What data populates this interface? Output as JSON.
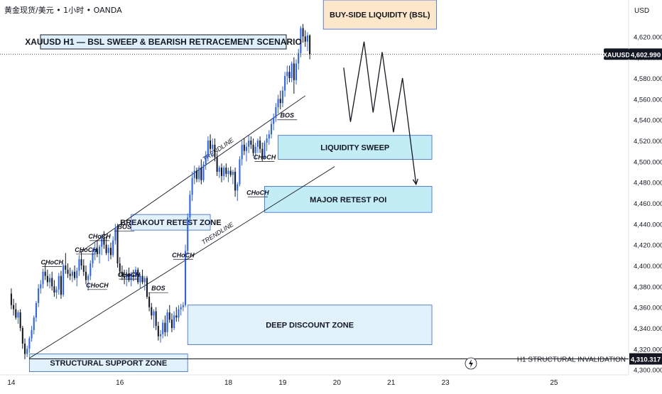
{
  "header": {
    "symbol_text": "黄金现货/美元 • 1小时 • OANDA"
  },
  "chart_data": {
    "type": "candlestick",
    "title": "XAUUSD H1 — BSL SWEEP & BEARISH RETRACEMENT SCENARIO",
    "currency": "USD",
    "symbol": "XAUUSD",
    "last_price": "4,602.990",
    "ylim": [
      4295,
      4655
    ],
    "y_ticks": [
      "4,300.000",
      "4,320.000",
      "4,340.000",
      "4,360.000",
      "4,380.000",
      "4,400.000",
      "4,420.000",
      "4,440.000",
      "4,460.000",
      "4,480.000",
      "4,500.000",
      "4,520.000",
      "4,540.000",
      "4,560.000",
      "4,580.000",
      "4,600.000",
      "4,620.000"
    ],
    "y_tick_values": [
      4300,
      4320,
      4340,
      4360,
      4380,
      4400,
      4420,
      4440,
      4460,
      4480,
      4500,
      4520,
      4540,
      4560,
      4580,
      4600,
      4620
    ],
    "x_ticks": [
      {
        "label": "14",
        "t": 0
      },
      {
        "label": "16",
        "t": 48
      },
      {
        "label": "18",
        "t": 96
      },
      {
        "label": "19",
        "t": 120
      },
      {
        "label": "20",
        "t": 144
      },
      {
        "label": "21",
        "t": 168
      },
      {
        "label": "23",
        "t": 192
      },
      {
        "label": "25",
        "t": 240
      }
    ],
    "xlim": [
      -5,
      273
    ],
    "invalidation": {
      "label": "H1 STRUCTURAL INVALIDATION",
      "price": 4310.317,
      "price_text": "4,310.317"
    },
    "zones": [
      {
        "name": "buy-side-liquidity-zone",
        "label": "BUY-SIDE LIQUIDITY (BSL)",
        "t0": 138,
        "t1": 188,
        "p0": 4627,
        "p1": 4655,
        "fill": "#fde3bf",
        "stroke": "#2962ff"
      },
      {
        "name": "liquidity-sweep-zone",
        "label": "LIQUIDITY SWEEP",
        "t0": 118,
        "t1": 186,
        "p0": 4502,
        "p1": 4525,
        "fill": "#b9eaf2",
        "stroke": "#2962ff"
      },
      {
        "name": "major-retest-poi-zone",
        "label": "MAJOR RETEST POI",
        "t0": 112,
        "t1": 186,
        "p0": 4451,
        "p1": 4476,
        "fill": "#b9eaf2",
        "stroke": "#2962ff"
      },
      {
        "name": "breakout-retest-zone",
        "label": "BREAKOUT RETEST ZONE",
        "t0": 53,
        "t1": 88,
        "p0": 4434,
        "p1": 4449,
        "fill": "#ddf0fb",
        "stroke": "#2962ff"
      },
      {
        "name": "deep-discount-zone",
        "label": "DEEP DISCOUNT ZONE",
        "t0": 78,
        "t1": 186,
        "p0": 4324,
        "p1": 4362,
        "fill": "#ddf0fb",
        "stroke": "#2962ff"
      },
      {
        "name": "structural-support-zone",
        "label": "STRUCTURAL SUPPORT ZONE",
        "t0": 8,
        "t1": 78,
        "p0": 4298,
        "p1": 4315,
        "fill": "#ddf0fb",
        "stroke": "#2962ff"
      }
    ],
    "trendlines": [
      {
        "label": "TRENDLINE",
        "t0": 30,
        "p0": 4412,
        "t1": 130,
        "p1": 4563
      },
      {
        "label": "TRENDLINE",
        "t0": 8,
        "p0": 4311,
        "t1": 143,
        "p1": 4495
      }
    ],
    "structure_labels": [
      {
        "text": "CHoCH",
        "t": 18,
        "p": 4401
      },
      {
        "text": "CHoCH",
        "t": 33,
        "p": 4413
      },
      {
        "text": "CHoCH",
        "t": 39,
        "p": 4426
      },
      {
        "text": "BOS",
        "t": 50,
        "p": 4435
      },
      {
        "text": "CHoCH",
        "t": 38,
        "p": 4379
      },
      {
        "text": "CHoCH",
        "t": 52,
        "p": 4389
      },
      {
        "text": "CHoCH",
        "t": 76,
        "p": 4408
      },
      {
        "text": "BOS",
        "t": 65,
        "p": 4376
      },
      {
        "text": "CHoCH",
        "t": 112,
        "p": 4502
      },
      {
        "text": "CHoCH",
        "t": 109,
        "p": 4468
      },
      {
        "text": "BOS",
        "t": 122,
        "p": 4542
      }
    ],
    "projection": [
      [
        147,
        4590
      ],
      [
        150,
        4538
      ],
      [
        156,
        4615
      ],
      [
        160,
        4547
      ],
      [
        164,
        4605
      ],
      [
        169,
        4528
      ],
      [
        173,
        4580
      ],
      [
        179,
        4478
      ]
    ],
    "candles": [
      [
        4373,
        4378,
        4358,
        4362
      ],
      [
        4362,
        4368,
        4352,
        4358
      ],
      [
        4358,
        4364,
        4348,
        4350
      ],
      [
        4350,
        4357,
        4344,
        4355
      ],
      [
        4355,
        4358,
        4337,
        4340
      ],
      [
        4340,
        4342,
        4320,
        4325
      ],
      [
        4325,
        4330,
        4310,
        4315
      ],
      [
        4315,
        4323,
        4312,
        4320
      ],
      [
        4320,
        4332,
        4316,
        4330
      ],
      [
        4330,
        4342,
        4327,
        4338
      ],
      [
        4338,
        4352,
        4334,
        4350
      ],
      [
        4350,
        4366,
        4346,
        4364
      ],
      [
        4364,
        4382,
        4360,
        4378
      ],
      [
        4378,
        4386,
        4373,
        4382
      ],
      [
        4382,
        4397,
        4378,
        4394
      ],
      [
        4394,
        4402,
        4386,
        4390
      ],
      [
        4390,
        4396,
        4380,
        4384
      ],
      [
        4384,
        4392,
        4378,
        4388
      ],
      [
        4388,
        4394,
        4376,
        4380
      ],
      [
        4380,
        4386,
        4370,
        4374
      ],
      [
        4374,
        4380,
        4368,
        4377
      ],
      [
        4377,
        4393,
        4372,
        4390
      ],
      [
        4390,
        4395,
        4368,
        4372
      ],
      [
        4372,
        4402,
        4370,
        4400
      ],
      [
        4400,
        4412,
        4392,
        4396
      ],
      [
        4396,
        4402,
        4388,
        4392
      ],
      [
        4392,
        4398,
        4386,
        4390
      ],
      [
        4390,
        4396,
        4384,
        4394
      ],
      [
        4394,
        4400,
        4386,
        4388
      ],
      [
        4388,
        4398,
        4380,
        4395
      ],
      [
        4395,
        4410,
        4390,
        4406
      ],
      [
        4406,
        4414,
        4396,
        4400
      ],
      [
        4400,
        4406,
        4390,
        4394
      ],
      [
        4394,
        4400,
        4382,
        4386
      ],
      [
        4386,
        4392,
        4376,
        4390
      ],
      [
        4390,
        4405,
        4386,
        4402
      ],
      [
        4402,
        4416,
        4398,
        4412
      ],
      [
        4412,
        4422,
        4405,
        4416
      ],
      [
        4416,
        4424,
        4408,
        4411
      ],
      [
        4411,
        4420,
        4402,
        4418
      ],
      [
        4418,
        4430,
        4410,
        4426
      ],
      [
        4426,
        4433,
        4416,
        4420
      ],
      [
        4420,
        4428,
        4410,
        4412
      ],
      [
        4412,
        4420,
        4404,
        4417
      ],
      [
        4417,
        4422,
        4406,
        4410
      ],
      [
        4410,
        4428,
        4408,
        4424
      ],
      [
        4424,
        4440,
        4420,
        4436
      ],
      [
        4436,
        4440,
        4398,
        4402
      ],
      [
        4402,
        4408,
        4390,
        4394
      ],
      [
        4394,
        4400,
        4386,
        4390
      ],
      [
        4390,
        4396,
        4382,
        4388
      ],
      [
        4388,
        4396,
        4380,
        4392
      ],
      [
        4392,
        4398,
        4384,
        4386
      ],
      [
        4386,
        4394,
        4380,
        4391
      ],
      [
        4391,
        4396,
        4385,
        4389
      ],
      [
        4389,
        4399,
        4386,
        4396
      ],
      [
        4396,
        4398,
        4382,
        4384
      ],
      [
        4384,
        4392,
        4378,
        4390
      ],
      [
        4390,
        4396,
        4382,
        4384
      ],
      [
        4384,
        4390,
        4376,
        4388
      ],
      [
        4388,
        4390,
        4368,
        4370
      ],
      [
        4370,
        4374,
        4356,
        4360
      ],
      [
        4360,
        4364,
        4348,
        4352
      ],
      [
        4352,
        4358,
        4340,
        4356
      ],
      [
        4356,
        4360,
        4338,
        4342
      ],
      [
        4342,
        4346,
        4328,
        4332
      ],
      [
        4332,
        4338,
        4326,
        4334
      ],
      [
        4334,
        4348,
        4330,
        4345
      ],
      [
        4345,
        4352,
        4332,
        4336
      ],
      [
        4336,
        4358,
        4332,
        4355
      ],
      [
        4355,
        4362,
        4345,
        4348
      ],
      [
        4348,
        4354,
        4336,
        4340
      ],
      [
        4340,
        4356,
        4338,
        4352
      ],
      [
        4352,
        4360,
        4346,
        4350
      ],
      [
        4350,
        4362,
        4346,
        4358
      ],
      [
        4358,
        4363,
        4352,
        4360
      ],
      [
        4360,
        4365,
        4356,
        4362
      ],
      [
        4362,
        4420,
        4360,
        4414
      ],
      [
        4414,
        4450,
        4410,
        4446
      ],
      [
        4446,
        4472,
        4440,
        4468
      ],
      [
        4468,
        4490,
        4462,
        4484
      ],
      [
        4484,
        4496,
        4478,
        4491
      ],
      [
        4491,
        4494,
        4480,
        4483
      ],
      [
        4483,
        4496,
        4480,
        4494
      ],
      [
        4494,
        4502,
        4478,
        4482
      ],
      [
        4482,
        4500,
        4480,
        4497
      ],
      [
        4497,
        4510,
        4492,
        4505
      ],
      [
        4505,
        4524,
        4500,
        4520
      ],
      [
        4520,
        4526,
        4508,
        4512
      ],
      [
        4512,
        4522,
        4504,
        4516
      ],
      [
        4516,
        4522,
        4500,
        4504
      ],
      [
        4504,
        4508,
        4486,
        4490
      ],
      [
        4490,
        4496,
        4484,
        4494
      ],
      [
        4494,
        4498,
        4480,
        4486
      ],
      [
        4486,
        4496,
        4482,
        4494
      ],
      [
        4494,
        4498,
        4485,
        4488
      ],
      [
        4488,
        4494,
        4480,
        4491
      ],
      [
        4491,
        4495,
        4485,
        4487
      ],
      [
        4487,
        4492,
        4478,
        4490
      ],
      [
        4490,
        4494,
        4466,
        4472
      ],
      [
        4472,
        4480,
        4462,
        4478
      ],
      [
        4478,
        4505,
        4476,
        4502
      ],
      [
        4502,
        4520,
        4496,
        4516
      ],
      [
        4516,
        4522,
        4506,
        4510
      ],
      [
        4510,
        4518,
        4500,
        4514
      ],
      [
        4514,
        4525,
        4508,
        4520
      ],
      [
        4520,
        4524,
        4512,
        4516
      ],
      [
        4516,
        4522,
        4505,
        4508
      ],
      [
        4508,
        4518,
        4502,
        4514
      ],
      [
        4514,
        4522,
        4508,
        4520
      ],
      [
        4520,
        4524,
        4508,
        4512
      ],
      [
        4512,
        4518,
        4500,
        4504
      ],
      [
        4504,
        4520,
        4502,
        4518
      ],
      [
        4518,
        4526,
        4510,
        4522
      ],
      [
        4522,
        4530,
        4516,
        4526
      ],
      [
        4526,
        4540,
        4522,
        4536
      ],
      [
        4536,
        4546,
        4530,
        4542
      ],
      [
        4542,
        4556,
        4538,
        4552
      ],
      [
        4552,
        4564,
        4546,
        4560
      ],
      [
        4560,
        4568,
        4550,
        4556
      ],
      [
        4556,
        4572,
        4552,
        4568
      ],
      [
        4568,
        4586,
        4562,
        4582
      ],
      [
        4582,
        4592,
        4574,
        4586
      ],
      [
        4586,
        4592,
        4576,
        4580
      ],
      [
        4580,
        4596,
        4576,
        4594
      ],
      [
        4594,
        4600,
        4565,
        4578
      ],
      [
        4578,
        4598,
        4574,
        4594
      ],
      [
        4594,
        4608,
        4588,
        4604
      ],
      [
        4604,
        4630,
        4600,
        4628
      ],
      [
        4628,
        4632,
        4614,
        4620
      ],
      [
        4620,
        4626,
        4610,
        4615
      ],
      [
        4615,
        4624,
        4606,
        4621
      ],
      [
        4621,
        4622,
        4598,
        4603
      ]
    ]
  }
}
